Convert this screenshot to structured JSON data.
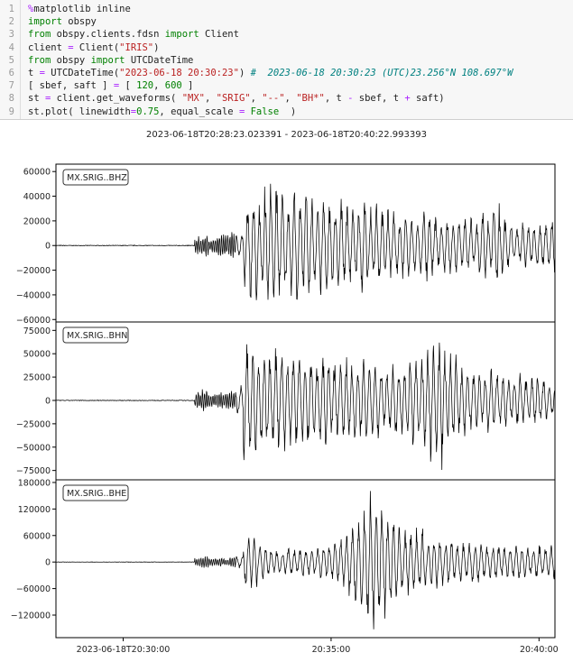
{
  "notebook": {
    "code_lines": [
      [
        [
          "op",
          "%"
        ],
        [
          "",
          "matplotlib inline"
        ]
      ],
      [
        [
          "kw",
          "import"
        ],
        [
          "",
          " obspy"
        ]
      ],
      [
        [
          "kw",
          "from"
        ],
        [
          "",
          " obspy.clients.fdsn "
        ],
        [
          "kw",
          "import"
        ],
        [
          "",
          " Client"
        ]
      ],
      [
        [
          "",
          "client "
        ],
        [
          "op",
          "="
        ],
        [
          "",
          " Client("
        ],
        [
          "str",
          "\"IRIS\""
        ],
        [
          "",
          ")"
        ]
      ],
      [
        [
          "kw",
          "from"
        ],
        [
          "",
          " obspy "
        ],
        [
          "kw",
          "import"
        ],
        [
          "",
          " UTCDateTime"
        ]
      ],
      [
        [
          "",
          "t "
        ],
        [
          "op",
          "="
        ],
        [
          "",
          " UTCDateTime("
        ],
        [
          "str",
          "\"2023-06-18 20:30:23\""
        ],
        [
          "",
          ") "
        ],
        [
          "cm",
          "#  2023-06-18 20:30:23 (UTC)23.256°N 108.697°W"
        ]
      ],
      [
        [
          "",
          "[ sbef, saft ] "
        ],
        [
          "op",
          "="
        ],
        [
          "",
          " [ "
        ],
        [
          "num",
          "120"
        ],
        [
          "",
          ", "
        ],
        [
          "num",
          "600"
        ],
        [
          "",
          " ]"
        ]
      ],
      [
        [
          "",
          "st "
        ],
        [
          "op",
          "="
        ],
        [
          "",
          " client.get_waveforms( "
        ],
        [
          "str",
          "\"MX\""
        ],
        [
          "",
          ", "
        ],
        [
          "str",
          "\"SRIG\""
        ],
        [
          "",
          ", "
        ],
        [
          "str",
          "\"--\""
        ],
        [
          "",
          ", "
        ],
        [
          "str",
          "\"BH*\""
        ],
        [
          "",
          ", t "
        ],
        [
          "op",
          "-"
        ],
        [
          "",
          " sbef, t "
        ],
        [
          "op",
          "+"
        ],
        [
          "",
          " saft)"
        ]
      ],
      [
        [
          "",
          "st.plot( linewidth"
        ],
        [
          "op",
          "="
        ],
        [
          "num",
          "0.75"
        ],
        [
          "",
          ", equal_scale "
        ],
        [
          "op",
          "="
        ],
        [
          "",
          " "
        ],
        [
          "kw",
          "False"
        ],
        [
          "",
          "  )"
        ]
      ]
    ]
  },
  "colors": {
    "keyword": "#008000",
    "string": "#ba2121",
    "operator": "#aa22ff",
    "comment": "#008080",
    "trace": "#000000"
  },
  "chart_data": {
    "type": "line",
    "title": "2023-06-18T20:28:23.023391  -  2023-06-18T20:40:22.993393",
    "start_time": "2023-06-18T20:28:23.023391",
    "end_time": "2023-06-18T20:40:22.993393",
    "x_ticks": [
      "2023-06-18T20:30:00",
      "20:35:00",
      "20:40:00"
    ],
    "envelope_bin_seconds": 10,
    "grid": false,
    "panels": [
      {
        "label": "MX.SRIG..BHZ",
        "yticks": [
          "60000",
          "40000",
          "20000",
          "0",
          "−20000",
          "−40000",
          "−60000"
        ],
        "ytick_values": [
          60000,
          40000,
          20000,
          0,
          -20000,
          -40000,
          -60000
        ],
        "ylim": [
          -62000,
          66000
        ],
        "envelope": [
          500,
          500,
          500,
          500,
          500,
          500,
          500,
          500,
          500,
          500,
          500,
          500,
          500,
          500,
          500,
          500,
          500,
          500,
          500,
          500,
          8000,
          10000,
          7000,
          9000,
          10000,
          12000,
          12000,
          35000,
          50000,
          40000,
          55000,
          55000,
          45000,
          42000,
          50000,
          45000,
          45000,
          40000,
          42000,
          40000,
          35000,
          40000,
          35000,
          30000,
          40000,
          35000,
          40000,
          30000,
          30000,
          25000,
          30000,
          25000,
          25000,
          30000,
          25000,
          20000,
          25000,
          25000,
          20000,
          25000,
          20000,
          30000,
          25000,
          40000,
          25000,
          20000,
          15000,
          20000,
          18000,
          20000,
          20000,
          25000
        ]
      },
      {
        "label": "MX.SRIG..BHN",
        "yticks": [
          "75000",
          "50000",
          "25000",
          "0",
          "−25000",
          "−50000",
          "−75000"
        ],
        "ytick_values": [
          75000,
          50000,
          25000,
          0,
          -25000,
          -50000,
          -75000
        ],
        "ylim": [
          -85000,
          84000
        ],
        "envelope": [
          600,
          600,
          600,
          600,
          600,
          600,
          600,
          600,
          600,
          600,
          600,
          600,
          600,
          600,
          600,
          600,
          600,
          600,
          600,
          600,
          10000,
          14000,
          8000,
          10000,
          10000,
          15000,
          20000,
          70000,
          70000,
          55000,
          65000,
          60000,
          60000,
          55000,
          60000,
          50000,
          55000,
          45000,
          55000,
          50000,
          45000,
          50000,
          40000,
          45000,
          50000,
          40000,
          45000,
          35000,
          40000,
          45000,
          40000,
          50000,
          45000,
          55000,
          70000,
          75000,
          60000,
          50000,
          40000,
          35000,
          35000,
          30000,
          35000,
          35000,
          30000,
          25000,
          30000,
          25000,
          25000,
          30000,
          25000,
          20000
        ]
      },
      {
        "label": "MX.SRIG..BHE",
        "yticks": [
          "180000",
          "120000",
          "60000",
          "0",
          "−60000",
          "−120000"
        ],
        "ytick_values": [
          180000,
          120000,
          60000,
          0,
          -60000,
          -120000
        ],
        "ylim": [
          -171000,
          186000
        ],
        "envelope": [
          800,
          800,
          800,
          800,
          800,
          800,
          800,
          800,
          800,
          800,
          800,
          800,
          800,
          800,
          800,
          800,
          800,
          800,
          800,
          800,
          10000,
          15000,
          10000,
          10000,
          8000,
          12000,
          15000,
          60000,
          70000,
          40000,
          35000,
          30000,
          30000,
          35000,
          30000,
          35000,
          30000,
          35000,
          40000,
          45000,
          50000,
          60000,
          90000,
          110000,
          140000,
          165000,
          160000,
          130000,
          110000,
          90000,
          80000,
          70000,
          80000,
          60000,
          70000,
          60000,
          55000,
          50000,
          50000,
          45000,
          50000,
          45000,
          40000,
          45000,
          40000,
          40000,
          45000,
          40000,
          35000,
          40000,
          40000,
          40000
        ]
      }
    ]
  }
}
